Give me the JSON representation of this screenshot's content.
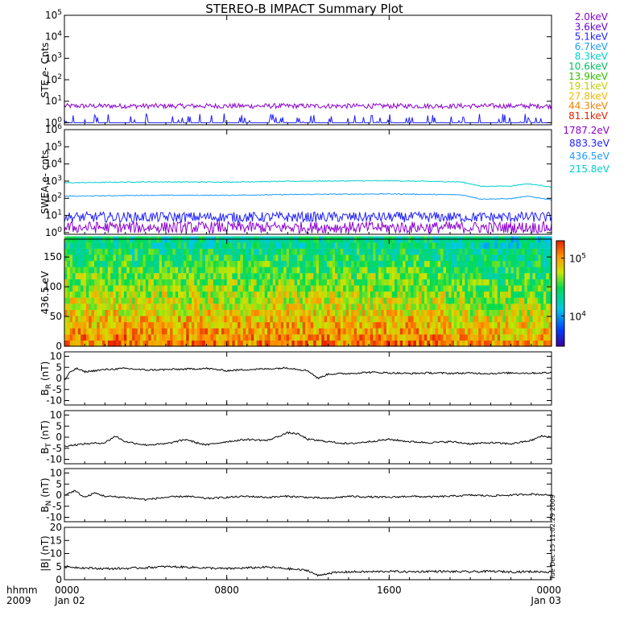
{
  "title": "STEREO-B IMPACT Summary Plot",
  "timestamp_vertical": "Tue Dec 15 11:02:29 2009",
  "x_axis": {
    "unit_label": "hhmm",
    "year_label": "2009",
    "range_hours": [
      0,
      24
    ],
    "ticks": [
      {
        "hour": 0,
        "time": "0000",
        "date": "Jan 02"
      },
      {
        "hour": 8,
        "time": "0800",
        "date": ""
      },
      {
        "hour": 16,
        "time": "1600",
        "date": ""
      },
      {
        "hour": 24,
        "time": "0000",
        "date": "Jan 03"
      }
    ]
  },
  "legend_ste": [
    {
      "label": "2.0keV",
      "color": "#8b00d0"
    },
    {
      "label": "3.6keV",
      "color": "#6a00e0"
    },
    {
      "label": "5.1keV",
      "color": "#2020ff"
    },
    {
      "label": "6.7keV",
      "color": "#1a9cff"
    },
    {
      "label": "8.3keV",
      "color": "#00d0d0"
    },
    {
      "label": "10.6keV",
      "color": "#00c060"
    },
    {
      "label": "13.9keV",
      "color": "#30c000"
    },
    {
      "label": "19.1keV",
      "color": "#c0d000"
    },
    {
      "label": "27.8keV",
      "color": "#f0b800"
    },
    {
      "label": "44.3keV",
      "color": "#f08000"
    },
    {
      "label": "81.1keV",
      "color": "#e02000"
    }
  ],
  "legend_swea": [
    {
      "label": "1787.2eV",
      "color": "#8b00d0"
    },
    {
      "label": "883.3eV",
      "color": "#2020ff"
    },
    {
      "label": "436.5eV",
      "color": "#1a9cff"
    },
    {
      "label": "215.8eV",
      "color": "#00d0d0"
    }
  ],
  "colorbar": {
    "ticks": [
      {
        "label": "10",
        "exp": "5",
        "value": 100000
      },
      {
        "label": "10",
        "exp": "4",
        "value": 10000
      }
    ],
    "range": [
      3000,
      200000
    ]
  },
  "chart_data": [
    {
      "type": "line",
      "panel": "ste",
      "ylabel": "STE e- Cnts",
      "yscale": "log",
      "ylim": [
        0.8,
        100000
      ],
      "yticks": [
        {
          "base": "10",
          "exp": "0",
          "value": 1
        },
        {
          "base": "10",
          "exp": "1",
          "value": 10
        },
        {
          "base": "10",
          "exp": "2",
          "value": 100
        },
        {
          "base": "10",
          "exp": "3",
          "value": 1000
        },
        {
          "base": "10",
          "exp": "4",
          "value": 10000
        },
        {
          "base": "10",
          "exp": "5",
          "value": 100000
        }
      ],
      "series": [
        {
          "name": "2.0keV",
          "color": "#8b00d0",
          "baseline": 6,
          "noise": 1.3,
          "kind": "band"
        },
        {
          "name": "5.1keV",
          "color": "#2020ff",
          "baseline": 1,
          "noise": 1.5,
          "kind": "spiky"
        }
      ]
    },
    {
      "type": "line",
      "panel": "swea",
      "ylabel": "SWEA e- cnts",
      "yscale": "log",
      "ylim": [
        0.8,
        1000000
      ],
      "yticks": [
        {
          "base": "10",
          "exp": "0",
          "value": 1
        },
        {
          "base": "10",
          "exp": "1",
          "value": 10
        },
        {
          "base": "10",
          "exp": "2",
          "value": 100
        },
        {
          "base": "10",
          "exp": "3",
          "value": 1000
        },
        {
          "base": "10",
          "exp": "4",
          "value": 10000
        },
        {
          "base": "10",
          "exp": "5",
          "value": 100000
        },
        {
          "base": "10",
          "exp": "6",
          "value": 1000000
        }
      ],
      "series": [
        {
          "name": "215.8eV",
          "color": "#00d0d0",
          "hours": [
            0,
            4,
            8,
            12,
            16,
            19.5,
            20.5,
            22,
            22.8,
            24
          ],
          "values": [
            800,
            900,
            880,
            1000,
            1050,
            900,
            500,
            520,
            700,
            450
          ]
        },
        {
          "name": "436.5eV",
          "color": "#1a9cff",
          "hours": [
            0,
            4,
            8,
            12,
            16,
            19.5,
            20.5,
            22,
            22.8,
            24
          ],
          "values": [
            130,
            150,
            150,
            170,
            180,
            160,
            90,
            95,
            130,
            80
          ]
        },
        {
          "name": "883.3eV",
          "color": "#2020ff",
          "baseline": 8,
          "noise": 2.0,
          "kind": "band"
        },
        {
          "name": "1787.2eV",
          "color": "#8b00d0",
          "baseline": 2,
          "noise": 2.2,
          "kind": "band"
        }
      ]
    },
    {
      "type": "heatmap",
      "panel": "pad",
      "ylabel": "436.5 eV",
      "ylim": [
        0,
        180
      ],
      "yticks": [
        0,
        50,
        100,
        150
      ],
      "zscale": "log",
      "zlim": [
        3000,
        200000
      ]
    },
    {
      "type": "line",
      "panel": "br",
      "ylabel": "B",
      "ylabel_sub": "R",
      "ylabel_unit": "(nT)",
      "ylim": [
        -12,
        12
      ],
      "yticks": [
        -10,
        -5,
        0,
        5,
        10
      ],
      "series": [
        {
          "name": "",
          "color": "#000000",
          "hours": [
            0,
            0.3,
            0.6,
            1,
            2,
            3,
            4,
            5,
            6,
            7,
            8,
            9,
            10,
            11,
            12,
            12.5,
            13,
            14,
            15,
            16,
            17,
            18,
            19,
            20,
            21,
            22,
            23,
            24
          ],
          "values": [
            -1,
            3,
            4.5,
            3,
            4,
            4.5,
            3.8,
            4,
            4.2,
            4.5,
            3.5,
            4,
            4.3,
            4.8,
            3.5,
            0,
            2,
            2.2,
            2.8,
            2.5,
            2.2,
            2.5,
            2.3,
            2.4,
            2.2,
            2.5,
            2.4,
            2.6
          ]
        }
      ]
    },
    {
      "type": "line",
      "panel": "bt",
      "ylabel": "B",
      "ylabel_sub": "T",
      "ylabel_unit": "(nT)",
      "ylim": [
        -12,
        12
      ],
      "yticks": [
        -10,
        -5,
        0,
        5,
        10
      ],
      "series": [
        {
          "name": "",
          "color": "#000000",
          "hours": [
            0,
            1,
            2,
            2.5,
            3,
            4,
            5,
            6,
            6.5,
            7,
            8,
            9,
            10,
            11,
            11.5,
            12,
            13,
            14,
            15,
            16,
            17,
            18,
            19,
            20,
            21,
            22,
            23,
            23.5,
            24
          ],
          "values": [
            -4,
            -3,
            -2.5,
            0.5,
            -2,
            -3.5,
            -3,
            -1,
            -2.5,
            -3.5,
            -2,
            -1,
            -1.5,
            2,
            1.5,
            -1,
            -2,
            -3,
            -2,
            -1,
            -2,
            -2.5,
            -2,
            -3,
            -2.5,
            -3,
            -1.5,
            0.5,
            0
          ]
        }
      ]
    },
    {
      "type": "line",
      "panel": "bn",
      "ylabel": "B",
      "ylabel_sub": "N",
      "ylabel_unit": "(nT)",
      "ylim": [
        -12,
        12
      ],
      "yticks": [
        -10,
        -5,
        0,
        5,
        10
      ],
      "series": [
        {
          "name": "",
          "color": "#000000",
          "hours": [
            0,
            0.5,
            1,
            1.5,
            2,
            3,
            4,
            5,
            6,
            7,
            8,
            9,
            10,
            11,
            12,
            13,
            14,
            15,
            16,
            17,
            18,
            19,
            20,
            21,
            22,
            23,
            24
          ],
          "values": [
            0,
            2,
            -1,
            1,
            -0.5,
            -1,
            -2,
            -1,
            -0.5,
            -1.5,
            -1,
            -0.5,
            -1,
            -0.5,
            -1,
            -1.5,
            -0.5,
            -0.8,
            -1,
            -0.5,
            -0.8,
            -0.5,
            0,
            -0.3,
            0,
            0.5,
            0
          ]
        }
      ]
    },
    {
      "type": "line",
      "panel": "bmag",
      "ylabel": "|B| (nT)",
      "ylim": [
        0,
        20
      ],
      "yticks": [
        0,
        5,
        10,
        15,
        20
      ],
      "series": [
        {
          "name": "",
          "color": "#000000",
          "hours": [
            0,
            1,
            2,
            3,
            4,
            5,
            6,
            7,
            8,
            9,
            10,
            11,
            12,
            12.5,
            13,
            14,
            15,
            16,
            17,
            18,
            19,
            20,
            21,
            22,
            23,
            24
          ],
          "values": [
            5,
            4.5,
            4.2,
            4.3,
            4.6,
            5,
            4.8,
            4.5,
            4.2,
            4.5,
            4.8,
            4.2,
            3.5,
            1.5,
            2.5,
            3,
            3,
            3.2,
            3,
            3.2,
            3.1,
            3,
            3.2,
            3,
            3.1,
            3
          ]
        }
      ]
    }
  ]
}
